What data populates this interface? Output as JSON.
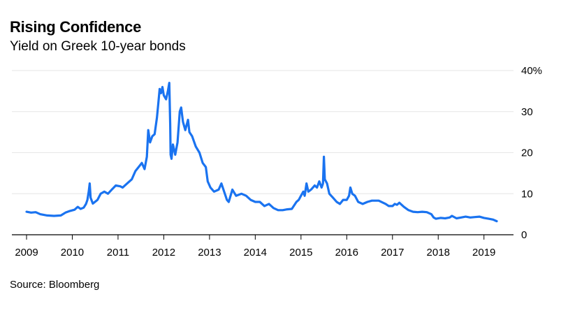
{
  "title": "Rising Confidence",
  "subtitle": "Yield on Greek 10-year bonds",
  "source": "Source: Bloomberg",
  "chart_data": {
    "type": "line",
    "title": "Rising Confidence",
    "subtitle": "Yield on Greek 10-year bonds",
    "xlabel": "",
    "ylabel": "",
    "xlim": [
      2009.0,
      2019.6
    ],
    "ylim": [
      0,
      40
    ],
    "y_ticks": [
      0,
      10,
      20,
      30,
      40
    ],
    "y_tick_labels": [
      "0",
      "10",
      "20",
      "30",
      "40%"
    ],
    "x_ticks": [
      2009,
      2010,
      2011,
      2012,
      2013,
      2014,
      2015,
      2016,
      2017,
      2018,
      2019
    ],
    "x_tick_labels": [
      "2009",
      "2010",
      "2011",
      "2012",
      "2013",
      "2014",
      "2015",
      "2016",
      "2017",
      "2018",
      "2019"
    ],
    "grid": true,
    "y_axis_position": "right",
    "line_color": "#1a73f0",
    "series": [
      {
        "points": [
          [
            2009.0,
            5.6
          ],
          [
            2009.1,
            5.4
          ],
          [
            2009.2,
            5.5
          ],
          [
            2009.3,
            5.0
          ],
          [
            2009.45,
            4.7
          ],
          [
            2009.6,
            4.6
          ],
          [
            2009.75,
            4.7
          ],
          [
            2009.85,
            5.4
          ],
          [
            2009.95,
            5.8
          ],
          [
            2010.05,
            6.1
          ],
          [
            2010.12,
            6.8
          ],
          [
            2010.18,
            6.3
          ],
          [
            2010.25,
            6.6
          ],
          [
            2010.3,
            7.5
          ],
          [
            2010.33,
            8.5
          ],
          [
            2010.36,
            10.5
          ],
          [
            2010.38,
            12.5
          ],
          [
            2010.4,
            9.0
          ],
          [
            2010.45,
            7.6
          ],
          [
            2010.55,
            8.5
          ],
          [
            2010.62,
            10.0
          ],
          [
            2010.7,
            10.5
          ],
          [
            2010.78,
            10.0
          ],
          [
            2010.88,
            11.2
          ],
          [
            2010.95,
            12.0
          ],
          [
            2011.05,
            11.8
          ],
          [
            2011.1,
            11.5
          ],
          [
            2011.2,
            12.5
          ],
          [
            2011.3,
            13.5
          ],
          [
            2011.38,
            15.5
          ],
          [
            2011.45,
            16.5
          ],
          [
            2011.52,
            17.5
          ],
          [
            2011.58,
            16.0
          ],
          [
            2011.63,
            19.0
          ],
          [
            2011.66,
            25.5
          ],
          [
            2011.7,
            22.5
          ],
          [
            2011.75,
            24.0
          ],
          [
            2011.8,
            24.5
          ],
          [
            2011.85,
            28.5
          ],
          [
            2011.88,
            32.0
          ],
          [
            2011.91,
            35.5
          ],
          [
            2011.94,
            34.5
          ],
          [
            2011.97,
            36.0
          ],
          [
            2012.0,
            34.0
          ],
          [
            2012.05,
            33.0
          ],
          [
            2012.09,
            35.0
          ],
          [
            2012.12,
            37.0
          ],
          [
            2012.14,
            27.0
          ],
          [
            2012.15,
            19.5
          ],
          [
            2012.17,
            18.5
          ],
          [
            2012.2,
            22.0
          ],
          [
            2012.25,
            19.5
          ],
          [
            2012.3,
            22.5
          ],
          [
            2012.35,
            30.0
          ],
          [
            2012.38,
            31.0
          ],
          [
            2012.42,
            27.5
          ],
          [
            2012.47,
            25.5
          ],
          [
            2012.53,
            28.0
          ],
          [
            2012.56,
            25.0
          ],
          [
            2012.62,
            24.0
          ],
          [
            2012.7,
            21.5
          ],
          [
            2012.78,
            20.0
          ],
          [
            2012.85,
            17.5
          ],
          [
            2012.92,
            16.5
          ],
          [
            2012.96,
            13.0
          ],
          [
            2013.02,
            11.5
          ],
          [
            2013.1,
            10.5
          ],
          [
            2013.2,
            11.0
          ],
          [
            2013.26,
            12.5
          ],
          [
            2013.32,
            10.5
          ],
          [
            2013.38,
            8.5
          ],
          [
            2013.42,
            8.0
          ],
          [
            2013.5,
            11.0
          ],
          [
            2013.58,
            9.5
          ],
          [
            2013.7,
            10.0
          ],
          [
            2013.8,
            9.5
          ],
          [
            2013.9,
            8.5
          ],
          [
            2014.0,
            8.0
          ],
          [
            2014.1,
            8.0
          ],
          [
            2014.2,
            7.0
          ],
          [
            2014.3,
            7.5
          ],
          [
            2014.4,
            6.5
          ],
          [
            2014.5,
            6.0
          ],
          [
            2014.6,
            6.0
          ],
          [
            2014.7,
            6.2
          ],
          [
            2014.8,
            6.3
          ],
          [
            2014.9,
            8.0
          ],
          [
            2014.95,
            8.5
          ],
          [
            2015.0,
            9.5
          ],
          [
            2015.05,
            10.5
          ],
          [
            2015.08,
            9.5
          ],
          [
            2015.12,
            12.5
          ],
          [
            2015.16,
            10.5
          ],
          [
            2015.22,
            11.0
          ],
          [
            2015.3,
            12.0
          ],
          [
            2015.35,
            11.5
          ],
          [
            2015.4,
            13.0
          ],
          [
            2015.45,
            11.5
          ],
          [
            2015.48,
            12.5
          ],
          [
            2015.5,
            19.0
          ],
          [
            2015.52,
            13.5
          ],
          [
            2015.57,
            12.5
          ],
          [
            2015.62,
            10.0
          ],
          [
            2015.7,
            9.0
          ],
          [
            2015.78,
            8.0
          ],
          [
            2015.85,
            7.5
          ],
          [
            2015.92,
            8.5
          ],
          [
            2016.0,
            8.5
          ],
          [
            2016.05,
            9.5
          ],
          [
            2016.08,
            11.5
          ],
          [
            2016.12,
            10.0
          ],
          [
            2016.18,
            9.5
          ],
          [
            2016.25,
            8.0
          ],
          [
            2016.35,
            7.5
          ],
          [
            2016.45,
            8.0
          ],
          [
            2016.55,
            8.3
          ],
          [
            2016.7,
            8.3
          ],
          [
            2016.85,
            7.5
          ],
          [
            2016.92,
            7.0
          ],
          [
            2017.0,
            7.0
          ],
          [
            2017.05,
            7.5
          ],
          [
            2017.1,
            7.3
          ],
          [
            2017.15,
            7.8
          ],
          [
            2017.25,
            6.8
          ],
          [
            2017.35,
            6.0
          ],
          [
            2017.45,
            5.6
          ],
          [
            2017.55,
            5.5
          ],
          [
            2017.65,
            5.6
          ],
          [
            2017.75,
            5.5
          ],
          [
            2017.85,
            5.0
          ],
          [
            2017.9,
            4.2
          ],
          [
            2017.95,
            3.9
          ],
          [
            2018.05,
            4.1
          ],
          [
            2018.15,
            4.0
          ],
          [
            2018.25,
            4.2
          ],
          [
            2018.3,
            4.6
          ],
          [
            2018.4,
            4.0
          ],
          [
            2018.5,
            4.2
          ],
          [
            2018.6,
            4.4
          ],
          [
            2018.7,
            4.2
          ],
          [
            2018.8,
            4.3
          ],
          [
            2018.9,
            4.4
          ],
          [
            2019.0,
            4.1
          ],
          [
            2019.1,
            3.9
          ],
          [
            2019.2,
            3.7
          ],
          [
            2019.28,
            3.3
          ]
        ]
      }
    ]
  }
}
